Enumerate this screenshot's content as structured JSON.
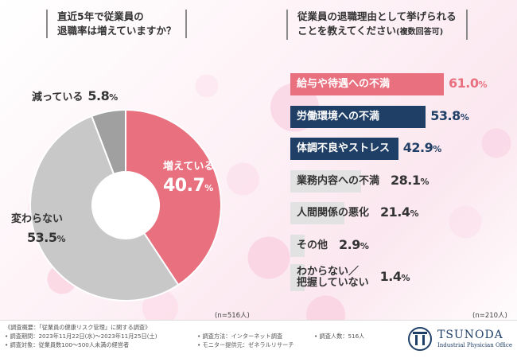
{
  "left_question": {
    "line1": "直近5年で従業員の",
    "line2": "退職率は増えていますか？"
  },
  "right_question": {
    "line1": "従業員の退職理由として挙げられる",
    "line2": "ことを教えてください",
    "suffix": "(複数回答可)"
  },
  "colors": {
    "pink": "#e8707f",
    "gray": "#c8c8c8",
    "dark_gray": "#a0a0a0",
    "navy": "#1f3f66",
    "light_gray_bar": "#e2e2e2"
  },
  "chart_data": [
    {
      "type": "pie",
      "title": "直近5年で従業員の退職率は増えていますか？",
      "slices": [
        {
          "label": "増えている",
          "value": 40.7,
          "display": "40.7",
          "color": "#e8707f"
        },
        {
          "label": "変わらない",
          "value": 53.5,
          "display": "53.5",
          "color": "#c8c8c8"
        },
        {
          "label": "減っている",
          "value": 5.8,
          "display": "5.8",
          "color": "#a0a0a0"
        }
      ],
      "n_note": "(n=516人)"
    },
    {
      "type": "bar",
      "title": "従業員の退職理由として挙げられることを教えてください(複数回答可)",
      "categories": [
        "給与や待遇への不満",
        "労働環境への不満",
        "体調不良やストレス",
        "業務内容への不満",
        "人間関係の悪化",
        "その他",
        "わからない／把握していない"
      ],
      "values": [
        61.0,
        53.8,
        42.9,
        28.1,
        21.4,
        2.9,
        1.4
      ],
      "display": [
        "61.0",
        "53.8",
        "42.9",
        "28.1",
        "21.4",
        "2.9",
        "1.4"
      ],
      "n_note": "(n=210人)"
    }
  ],
  "footer": {
    "summary": "《調査概要：「従業員の健康リスク管理」に関する調査》",
    "period": "• 調査期間：2023年11月22日(水)～2023年11月25日(土)",
    "target": "• 調査対象：従業員数100～500人未満の経営者",
    "method": "• 調査方法：インターネット調査",
    "monitor": "• モニター提供元：ゼネラルリサーチ",
    "count": "• 調査人数：516人",
    "logo_name": "TSUNODA",
    "logo_sub": "Industrial Physician Office"
  }
}
